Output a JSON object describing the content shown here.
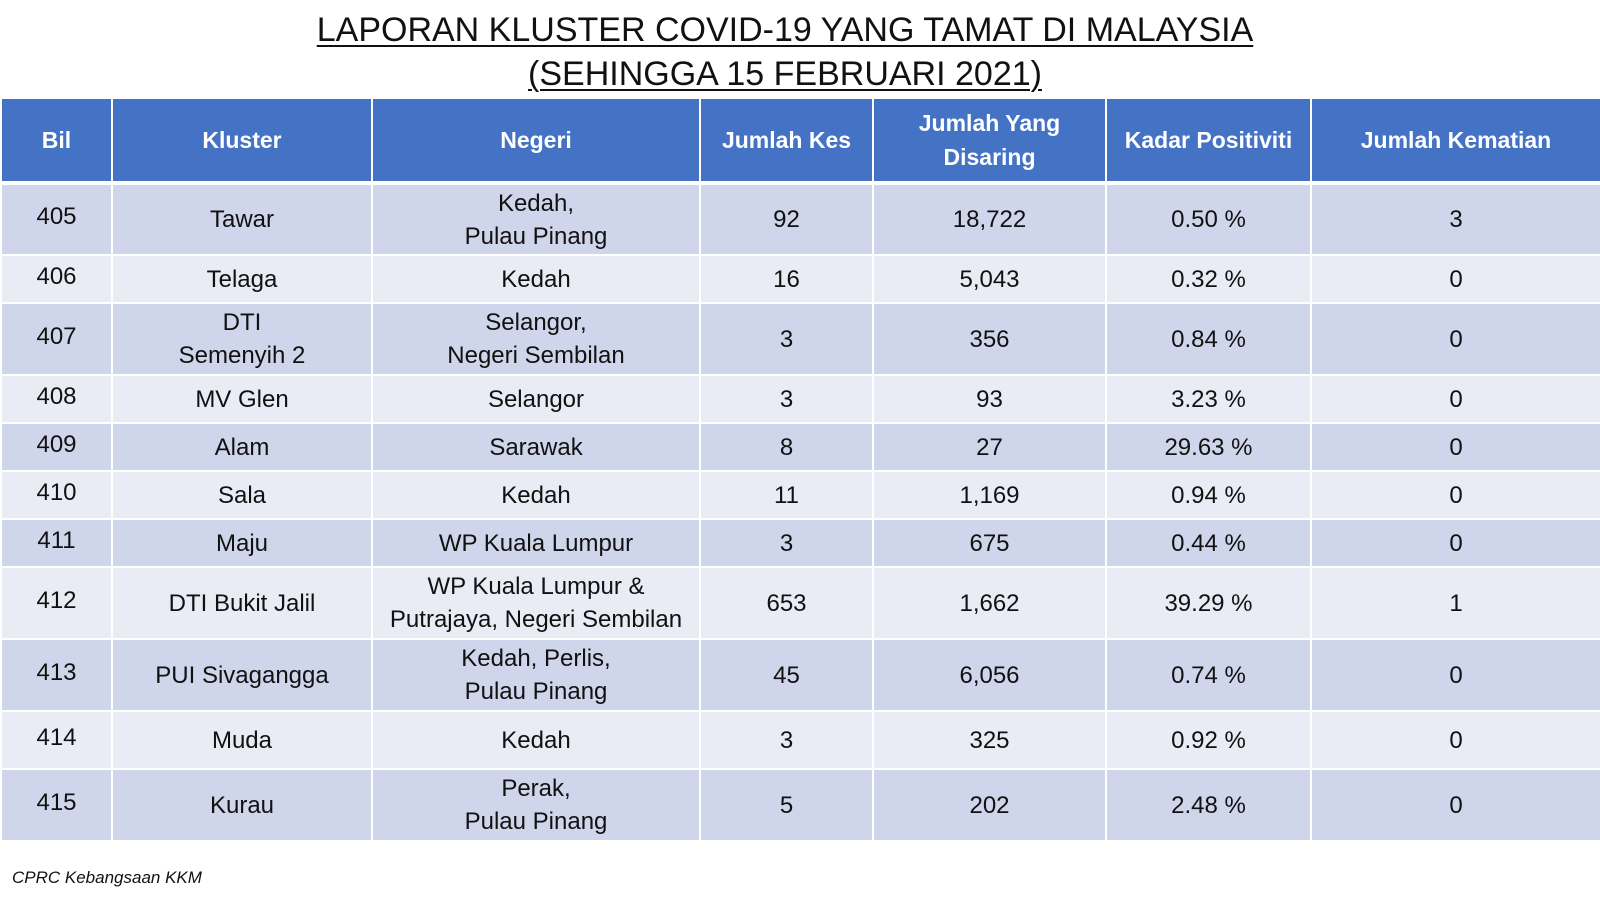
{
  "title": {
    "line1": "LAPORAN KLUSTER COVID-19 YANG TAMAT DI MALAYSIA",
    "line2": "(SEHINGGA 15 FEBRUARI 2021)"
  },
  "table": {
    "headers": {
      "bil": "Bil",
      "kluster": "Kluster",
      "negeri": "Negeri",
      "jumlah_kes": "Jumlah Kes",
      "jumlah_disaring_line1": "Jumlah Yang",
      "jumlah_disaring_line2": "Disaring",
      "kadar_positiviti": "Kadar Positiviti",
      "jumlah_kematian": "Jumlah Kematian"
    },
    "rows": [
      {
        "bil": "405",
        "kluster": [
          "Tawar"
        ],
        "negeri": [
          "Kedah,",
          "Pulau Pinang"
        ],
        "jumlah_kes": "92",
        "disaring": "18,722",
        "positiviti": "0.50 %",
        "kematian": "3"
      },
      {
        "bil": "406",
        "kluster": [
          "Telaga"
        ],
        "negeri": [
          "Kedah"
        ],
        "jumlah_kes": "16",
        "disaring": "5,043",
        "positiviti": "0.32 %",
        "kematian": "0"
      },
      {
        "bil": "407",
        "kluster": [
          "DTI",
          "Semenyih 2"
        ],
        "negeri": [
          "Selangor,",
          "Negeri Sembilan"
        ],
        "jumlah_kes": "3",
        "disaring": "356",
        "positiviti": "0.84 %",
        "kematian": "0"
      },
      {
        "bil": "408",
        "kluster": [
          "MV Glen"
        ],
        "negeri": [
          "Selangor"
        ],
        "jumlah_kes": "3",
        "disaring": "93",
        "positiviti": "3.23 %",
        "kematian": "0"
      },
      {
        "bil": "409",
        "kluster": [
          "Alam"
        ],
        "negeri": [
          "Sarawak"
        ],
        "jumlah_kes": "8",
        "disaring": "27",
        "positiviti": "29.63 %",
        "kematian": "0"
      },
      {
        "bil": "410",
        "kluster": [
          "Sala"
        ],
        "negeri": [
          "Kedah"
        ],
        "jumlah_kes": "11",
        "disaring": "1,169",
        "positiviti": "0.94 %",
        "kematian": "0"
      },
      {
        "bil": "411",
        "kluster": [
          "Maju"
        ],
        "negeri": [
          "WP Kuala Lumpur"
        ],
        "jumlah_kes": "3",
        "disaring": "675",
        "positiviti": "0.44 %",
        "kematian": "0"
      },
      {
        "bil": "412",
        "kluster": [
          "DTI Bukit Jalil"
        ],
        "negeri": [
          "WP Kuala Lumpur &",
          "Putrajaya, Negeri Sembilan"
        ],
        "jumlah_kes": "653",
        "disaring": "1,662",
        "positiviti": "39.29 %",
        "kematian": "1"
      },
      {
        "bil": "413",
        "kluster": [
          "PUI Sivagangga"
        ],
        "negeri": [
          "Kedah, Perlis,",
          "Pulau Pinang"
        ],
        "jumlah_kes": "45",
        "disaring": "6,056",
        "positiviti": "0.74 %",
        "kematian": "0"
      },
      {
        "bil": "414",
        "kluster": [
          "Muda"
        ],
        "negeri": [
          "Kedah"
        ],
        "jumlah_kes": "3",
        "disaring": "325",
        "positiviti": "0.92 %",
        "kematian": "0"
      },
      {
        "bil": "415",
        "kluster": [
          "Kurau"
        ],
        "negeri": [
          "Perak,",
          "Pulau Pinang"
        ],
        "jumlah_kes": "5",
        "disaring": "202",
        "positiviti": "2.48 %",
        "kematian": "0"
      }
    ]
  },
  "footer": {
    "source": "CPRC Kebangsaan KKM"
  },
  "colors": {
    "header_bg": "#4472c4",
    "row_odd_bg": "#cfd5ea",
    "row_even_bg": "#e9ebf5"
  }
}
